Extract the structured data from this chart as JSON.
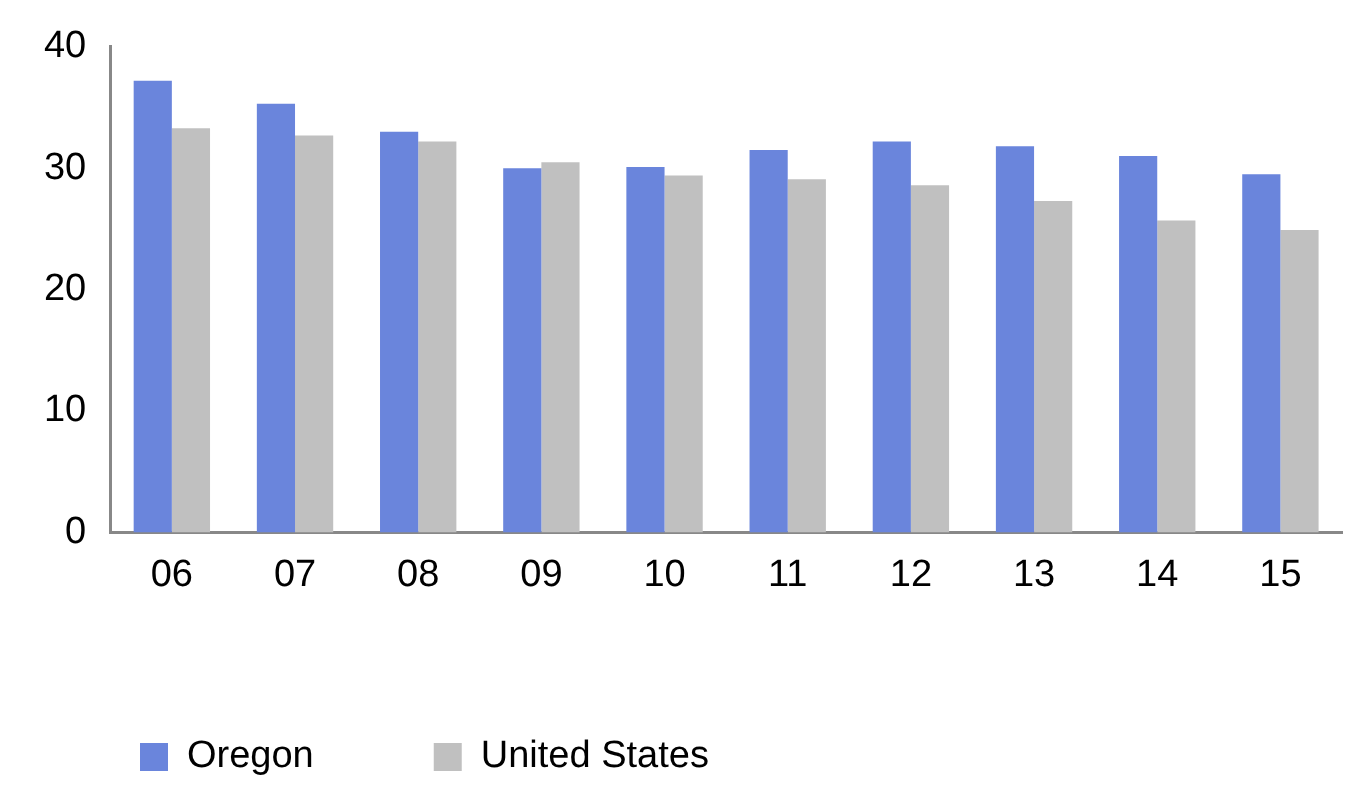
{
  "chart_data": {
    "type": "bar",
    "categories": [
      "06",
      "07",
      "08",
      "09",
      "10",
      "11",
      "12",
      "13",
      "14",
      "15"
    ],
    "series": [
      {
        "name": "Oregon",
        "color": "#6a85dc",
        "values": [
          37.2,
          35.3,
          33.0,
          30.0,
          30.1,
          31.5,
          32.2,
          31.8,
          31.0,
          29.5
        ]
      },
      {
        "name": "United States",
        "color": "#c0c0c0",
        "values": [
          33.3,
          32.7,
          32.2,
          30.5,
          29.4,
          29.1,
          28.6,
          27.3,
          25.7,
          24.9
        ]
      }
    ],
    "ylim": [
      0,
      40
    ],
    "yticks": [
      0,
      10,
      20,
      30,
      40
    ],
    "grid": false,
    "legend": "bottom"
  }
}
